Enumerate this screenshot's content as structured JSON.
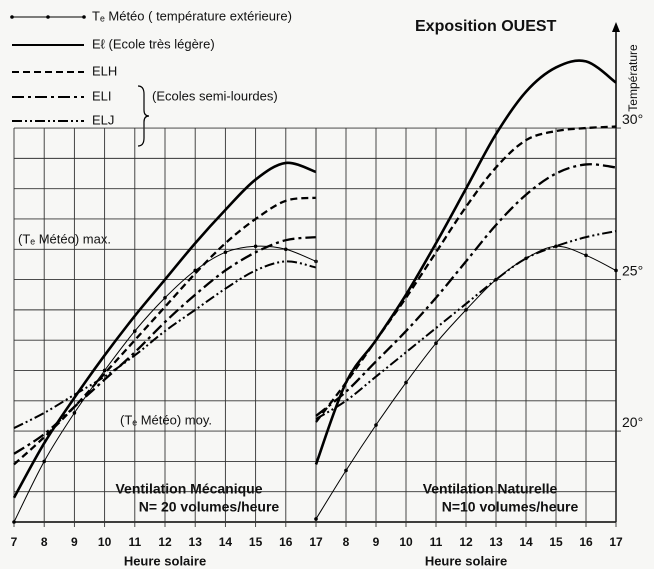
{
  "chart_data": {
    "type": "line",
    "title": "Exposition OUEST",
    "y_label": "Température",
    "ylim": [
      17,
      33.5
    ],
    "yticks": [
      {
        "value": 30,
        "label": "30°"
      },
      {
        "value": 25,
        "label": "25°"
      },
      {
        "value": 20,
        "label": "20°"
      }
    ],
    "grid_y": [
      17,
      18,
      19,
      20,
      21,
      22,
      23,
      24,
      25,
      26,
      27,
      28,
      29,
      30
    ],
    "xlim": [
      7,
      17
    ],
    "legend_group": "(Ecoles semi-lourdes)",
    "annotations": [
      "(Tₑ Météo)  max.",
      "(Tₑ Météo)  moy."
    ],
    "series": [
      {
        "name": "Tₑ Météo ( température extérieure)",
        "style": "dotted-thin",
        "color": "#000000"
      },
      {
        "name": "Eℓ   (Ecole très légère)",
        "style": "solid",
        "color": "#000000"
      },
      {
        "name": "ELH",
        "style": "dashed",
        "color": "#000000"
      },
      {
        "name": "ELI",
        "style": "dashdot",
        "color": "#000000"
      },
      {
        "name": "ELJ",
        "style": "dashdotdot",
        "color": "#000000"
      }
    ],
    "panels": [
      {
        "title": "Ventilation Mécanique",
        "subtitle": "N= 20 volumes/heure",
        "x_label": "Heure solaire",
        "x": [
          7,
          8,
          9,
          10,
          11,
          12,
          13,
          14,
          15,
          16,
          17
        ],
        "xticks": [
          7,
          8,
          9,
          10,
          11,
          12,
          13,
          14,
          15,
          16,
          17
        ],
        "values": [
          [
            17.0,
            19.0,
            20.6,
            22.0,
            23.3,
            24.4,
            25.3,
            25.9,
            26.1,
            26.0,
            25.6
          ],
          [
            17.8,
            19.6,
            21.1,
            22.5,
            23.8,
            25.0,
            26.2,
            27.3,
            28.3,
            28.85,
            28.55
          ],
          [
            18.9,
            19.8,
            20.8,
            21.9,
            23.0,
            24.1,
            25.2,
            26.2,
            27.0,
            27.6,
            27.7
          ],
          [
            19.25,
            19.9,
            20.8,
            21.7,
            22.6,
            23.6,
            24.5,
            25.3,
            25.9,
            26.3,
            26.4
          ],
          [
            20.1,
            20.6,
            21.2,
            21.8,
            22.5,
            23.3,
            24.0,
            24.7,
            25.3,
            25.6,
            25.4
          ]
        ]
      },
      {
        "title": "Ventilation Naturelle",
        "subtitle": "N=10 volumes/heure",
        "x_label": "Heure solaire",
        "x": [
          7,
          8,
          9,
          10,
          11,
          12,
          13,
          14,
          15,
          16,
          17
        ],
        "xticks": [
          8,
          9,
          10,
          11,
          12,
          13,
          14,
          15,
          16,
          17
        ],
        "values": [
          [
            17.1,
            18.7,
            20.2,
            21.6,
            22.9,
            24.0,
            25.0,
            25.7,
            26.1,
            25.8,
            25.3
          ],
          [
            18.9,
            21.6,
            23.0,
            24.5,
            26.2,
            28.0,
            29.8,
            31.2,
            32.0,
            32.2,
            31.5
          ],
          [
            20.3,
            21.6,
            23.0,
            24.4,
            25.9,
            27.4,
            28.7,
            29.6,
            29.9,
            30.0,
            30.05
          ],
          [
            20.5,
            21.3,
            22.3,
            23.3,
            24.4,
            25.6,
            26.8,
            27.8,
            28.5,
            28.8,
            28.7
          ],
          [
            20.4,
            21.0,
            21.8,
            22.6,
            23.4,
            24.2,
            25.0,
            25.7,
            26.1,
            26.4,
            26.6
          ]
        ]
      }
    ]
  }
}
